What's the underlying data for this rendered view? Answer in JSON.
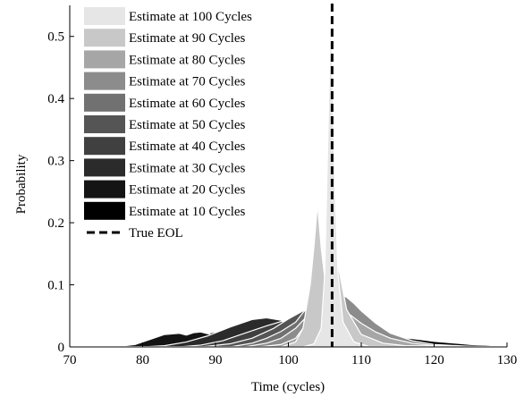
{
  "chart_data": {
    "type": "area",
    "xlabel": "Time (cycles)",
    "ylabel": "Probability",
    "xlim": [
      70,
      130
    ],
    "ylim": [
      0,
      0.55
    ],
    "xticks": [
      70,
      80,
      90,
      100,
      110,
      120,
      130
    ],
    "yticks": [
      0,
      0.1,
      0.2,
      0.3,
      0.4,
      0.5
    ],
    "grid": false,
    "legend_position": "top-left",
    "true_eol": {
      "label": "True EOL",
      "x": 106,
      "style": "dashed",
      "color": "#000000"
    },
    "series": [
      {
        "name": "Estimate at 10 Cycles",
        "color": "#000000",
        "x": [
          70,
          75,
          78,
          80,
          83,
          85,
          88,
          90,
          93,
          95,
          97,
          100,
          102,
          104,
          106,
          108,
          110,
          113,
          115,
          118,
          120,
          125,
          130
        ],
        "y": [
          0,
          0,
          0.002,
          0.006,
          0.012,
          0.016,
          0.02,
          0.024,
          0.028,
          0.031,
          0.033,
          0.034,
          0.034,
          0.033,
          0.031,
          0.028,
          0.025,
          0.02,
          0.016,
          0.012,
          0.009,
          0.004,
          0.001
        ]
      },
      {
        "name": "Estimate at 20 Cycles",
        "color": "#141414",
        "x": [
          70,
          76,
          79,
          81,
          83,
          85,
          86,
          87,
          88,
          90,
          93,
          96,
          100,
          104,
          108,
          112,
          116,
          120,
          125,
          130
        ],
        "y": [
          0,
          0,
          0.004,
          0.012,
          0.02,
          0.022,
          0.019,
          0.023,
          0.024,
          0.018,
          0.012,
          0.008,
          0.005,
          0.003,
          0.002,
          0.001,
          0.001,
          0,
          0,
          0
        ]
      },
      {
        "name": "Estimate at 30 Cycles",
        "color": "#2b2b2b",
        "x": [
          70,
          80,
          83,
          86,
          89,
          92,
          95,
          97,
          99,
          101,
          103,
          105,
          108,
          111,
          115,
          120,
          125,
          130
        ],
        "y": [
          0,
          0,
          0.002,
          0.008,
          0.018,
          0.032,
          0.044,
          0.047,
          0.043,
          0.034,
          0.024,
          0.016,
          0.008,
          0.004,
          0.002,
          0.001,
          0,
          0
        ]
      },
      {
        "name": "Estimate at 40 Cycles",
        "color": "#404040",
        "x": [
          70,
          85,
          88,
          91,
          94,
          97,
          99,
          101,
          103,
          105,
          107,
          109,
          112,
          116,
          120,
          130
        ],
        "y": [
          0,
          0,
          0.003,
          0.01,
          0.022,
          0.034,
          0.041,
          0.042,
          0.036,
          0.026,
          0.016,
          0.009,
          0.004,
          0.002,
          0.001,
          0
        ]
      },
      {
        "name": "Estimate at 50 Cycles",
        "color": "#555555",
        "x": [
          70,
          88,
          92,
          95,
          98,
          100,
          102,
          104,
          106,
          108,
          110,
          113,
          116,
          120,
          130
        ],
        "y": [
          0,
          0,
          0.005,
          0.014,
          0.03,
          0.045,
          0.058,
          0.06,
          0.05,
          0.034,
          0.02,
          0.009,
          0.004,
          0.001,
          0
        ]
      },
      {
        "name": "Estimate at 60 Cycles",
        "color": "#717171",
        "x": [
          70,
          92,
          95,
          97,
          99,
          101,
          102,
          103,
          104,
          105,
          106,
          108,
          110,
          112,
          115,
          118,
          121,
          125,
          130
        ],
        "y": [
          0,
          0,
          0.006,
          0.014,
          0.025,
          0.04,
          0.055,
          0.068,
          0.07,
          0.062,
          0.05,
          0.03,
          0.018,
          0.01,
          0.005,
          0.002,
          0.001,
          0,
          0
        ]
      },
      {
        "name": "Estimate at 70 Cycles",
        "color": "#8c8c8c",
        "x": [
          70,
          94,
          97,
          99,
          101,
          103,
          104,
          105,
          106,
          107,
          108,
          109,
          110,
          112,
          114,
          117,
          120,
          125,
          130
        ],
        "y": [
          0,
          0,
          0.006,
          0.014,
          0.03,
          0.055,
          0.068,
          0.07,
          0.072,
          0.085,
          0.08,
          0.07,
          0.058,
          0.038,
          0.022,
          0.01,
          0.004,
          0.001,
          0
        ]
      },
      {
        "name": "Estimate at 80 Cycles",
        "color": "#a6a6a6",
        "x": [
          70,
          96,
          99,
          101,
          102,
          103,
          104,
          105,
          106,
          107,
          108,
          110,
          112,
          114,
          117,
          120,
          130
        ],
        "y": [
          0,
          0,
          0.004,
          0.014,
          0.03,
          0.07,
          0.105,
          0.09,
          0.08,
          0.07,
          0.056,
          0.038,
          0.024,
          0.014,
          0.006,
          0.002,
          0
        ]
      },
      {
        "name": "Estimate at 90 Cycles",
        "color": "#c8c8c8",
        "x": [
          70,
          99,
          101,
          102,
          103,
          103.5,
          104,
          104.5,
          105,
          106,
          106.5,
          107,
          108,
          110,
          113,
          116,
          130
        ],
        "y": [
          0,
          0,
          0.008,
          0.03,
          0.1,
          0.16,
          0.23,
          0.16,
          0.11,
          0.15,
          0.155,
          0.12,
          0.06,
          0.02,
          0.006,
          0.002,
          0
        ]
      },
      {
        "name": "Estimate at 100 Cycles",
        "color": "#e6e6e6",
        "x": [
          70,
          102,
          103.5,
          104.5,
          105,
          105.5,
          105.8,
          106,
          106.3,
          106.8,
          107.5,
          109,
          111,
          130
        ],
        "y": [
          0,
          0,
          0.005,
          0.03,
          0.12,
          0.38,
          0.53,
          0.48,
          0.3,
          0.12,
          0.04,
          0.008,
          0.001,
          0
        ]
      }
    ]
  }
}
